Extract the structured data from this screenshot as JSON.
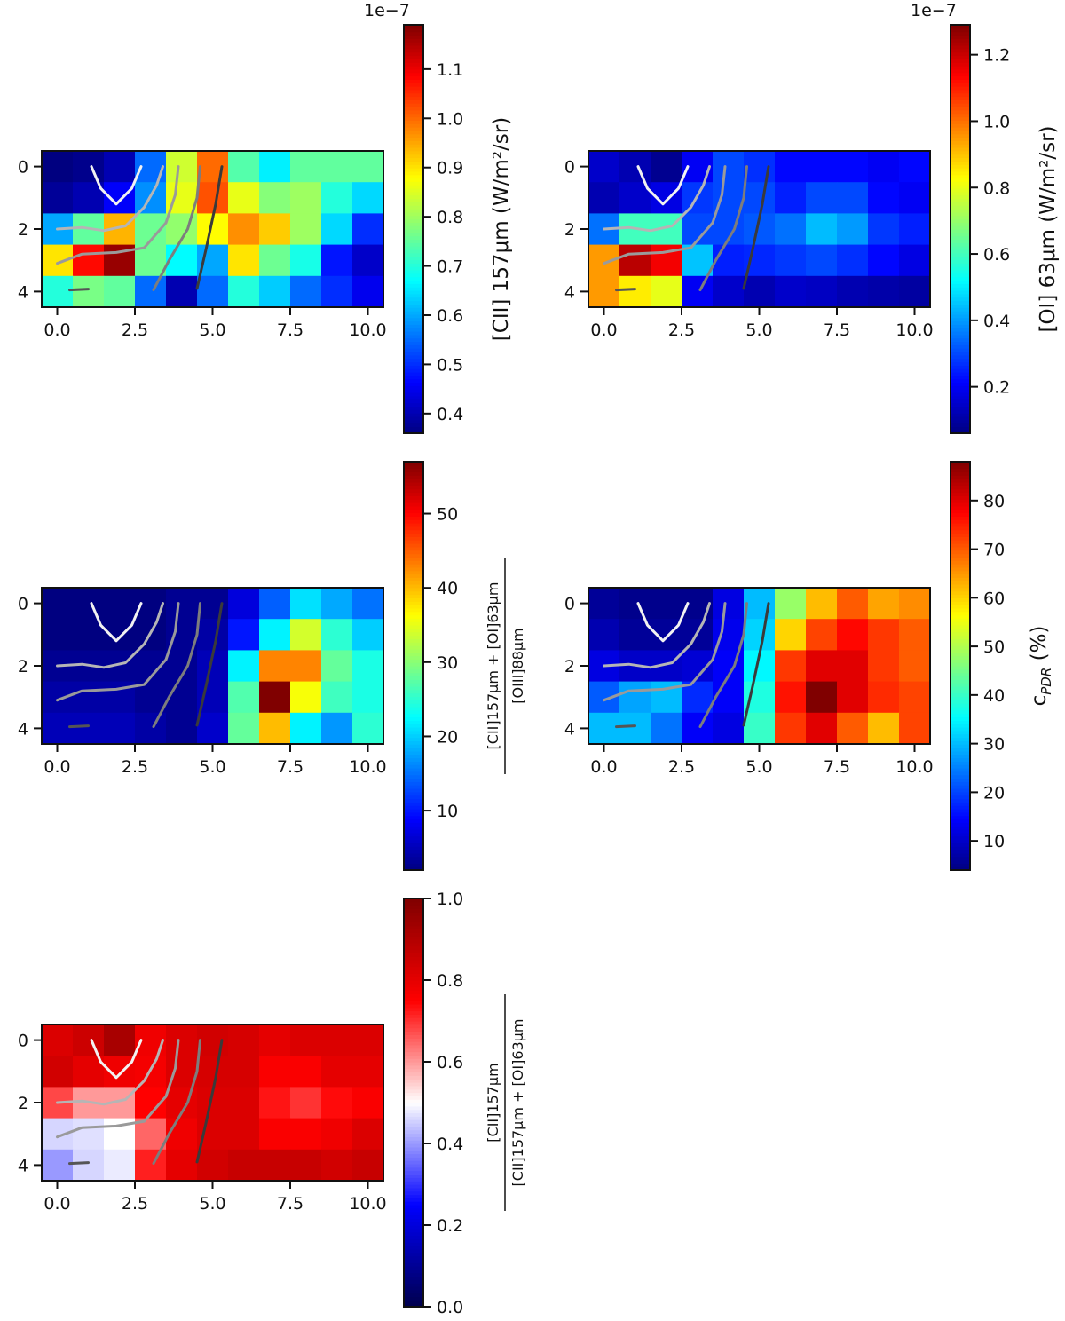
{
  "figure": {
    "panels": [
      {
        "id": "cii157",
        "cbar": {
          "label": "[CII] 157μm (W/m²/sr)",
          "label_type": "text",
          "offset_text": "1e−7",
          "colormap": "jet",
          "range": [
            0.36,
            1.19
          ],
          "ticks": [
            "0.4",
            "0.5",
            "0.6",
            "0.7",
            "0.8",
            "0.9",
            "1.0",
            "1.1"
          ]
        }
      },
      {
        "id": "oi63",
        "cbar": {
          "label": "[OI] 63μm (W/m²/sr)",
          "label_type": "text",
          "offset_text": "1e−7",
          "colormap": "jet",
          "range": [
            0.06,
            1.29
          ],
          "ticks": [
            "0.2",
            "0.4",
            "0.6",
            "0.8",
            "1.0",
            "1.2"
          ]
        }
      },
      {
        "id": "ratio_oiii",
        "cbar": {
          "label_type": "fraction",
          "numerator": "[CII]157μm + [OI]63μm",
          "denominator": "[OIII]88μm",
          "colormap": "jet",
          "range": [
            2,
            57
          ],
          "ticks": [
            "10",
            "20",
            "30",
            "40",
            "50"
          ]
        }
      },
      {
        "id": "cpdr",
        "cbar": {
          "label": "c",
          "label_sub": "PDR",
          "label_tail": " (%)",
          "label_type": "sub",
          "colormap": "jet",
          "range": [
            4,
            88
          ],
          "ticks": [
            "10",
            "20",
            "30",
            "40",
            "50",
            "60",
            "70",
            "80"
          ]
        }
      },
      {
        "id": "cii_fraction",
        "cbar": {
          "label_type": "fraction",
          "numerator": "[CII]157μm",
          "denominator": "[CII]157μm + [OI]63μm",
          "colormap": "seismic",
          "range": [
            0,
            1
          ],
          "ticks": [
            "0.0",
            "0.2",
            "0.4",
            "0.6",
            "0.8",
            "1.0"
          ]
        }
      }
    ],
    "axes": {
      "x_ticks": [
        "0.0",
        "2.5",
        "5.0",
        "7.5",
        "10.0"
      ],
      "y_ticks": [
        "0",
        "2",
        "4"
      ]
    }
  },
  "chart_data": [
    {
      "type": "heatmap",
      "name": "[CII] 157μm",
      "xlim": [
        -0.5,
        10.5
      ],
      "ylim": [
        4.5,
        -0.5
      ],
      "values": [
        [
          0.36,
          0.37,
          0.4,
          0.55,
          0.84,
          1.0,
          0.74,
          0.66,
          0.75,
          0.75,
          0.75
        ],
        [
          0.38,
          0.4,
          0.46,
          0.58,
          0.86,
          1.02,
          0.86,
          0.78,
          0.8,
          0.7,
          0.64
        ],
        [
          0.6,
          0.75,
          0.94,
          0.76,
          0.79,
          0.88,
          0.97,
          0.92,
          0.8,
          0.64,
          0.5
        ],
        [
          0.9,
          1.08,
          1.17,
          0.76,
          0.67,
          0.6,
          0.9,
          0.76,
          0.69,
          0.48,
          0.42
        ],
        [
          0.7,
          0.77,
          0.75,
          0.55,
          0.4,
          0.55,
          0.7,
          0.63,
          0.55,
          0.5,
          0.45
        ]
      ]
    },
    {
      "type": "heatmap",
      "name": "[OI] 63μm",
      "xlim": [
        -0.5,
        10.5
      ],
      "ylim": [
        4.5,
        -0.5
      ],
      "values": [
        [
          0.15,
          0.12,
          0.08,
          0.2,
          0.3,
          0.27,
          0.22,
          0.22,
          0.22,
          0.2,
          0.22
        ],
        [
          0.12,
          0.15,
          0.18,
          0.28,
          0.3,
          0.3,
          0.25,
          0.3,
          0.3,
          0.22,
          0.2
        ],
        [
          0.35,
          0.6,
          0.6,
          0.3,
          0.3,
          0.32,
          0.35,
          0.44,
          0.4,
          0.28,
          0.25
        ],
        [
          0.95,
          1.22,
          1.15,
          0.45,
          0.25,
          0.26,
          0.28,
          0.3,
          0.27,
          0.22,
          0.18
        ],
        [
          0.95,
          0.85,
          0.8,
          0.2,
          0.15,
          0.12,
          0.15,
          0.14,
          0.12,
          0.11,
          0.1
        ]
      ]
    },
    {
      "type": "heatmap",
      "name": "ratio ([CII]157μm + [OI]63μm)/[OIII]88μm",
      "xlim": [
        -0.5,
        10.5
      ],
      "ylim": [
        4.5,
        -0.5
      ],
      "values": [
        [
          2,
          2,
          2,
          2,
          3,
          3,
          7,
          14,
          21,
          18,
          15
        ],
        [
          2,
          2,
          2,
          2,
          3,
          4,
          10,
          22,
          34,
          25,
          20
        ],
        [
          3,
          3,
          3,
          3,
          3,
          5,
          22,
          43,
          43,
          28,
          24
        ],
        [
          4,
          4,
          4,
          3,
          3,
          5,
          27,
          57,
          36,
          26,
          24
        ],
        [
          5,
          5,
          5,
          4,
          3,
          6,
          28,
          40,
          22,
          17,
          25
        ]
      ]
    },
    {
      "type": "heatmap",
      "name": "cPDR (%)",
      "xlim": [
        -0.5,
        10.5
      ],
      "ylim": [
        4.5,
        -0.5
      ],
      "values": [
        [
          6,
          5,
          5,
          5,
          12,
          30,
          48,
          62,
          70,
          64,
          66
        ],
        [
          8,
          6,
          6,
          6,
          13,
          32,
          60,
          72,
          77,
          73,
          70
        ],
        [
          12,
          10,
          10,
          11,
          14,
          35,
          73,
          80,
          80,
          73,
          70
        ],
        [
          22,
          28,
          30,
          18,
          14,
          38,
          76,
          88,
          80,
          74,
          72
        ],
        [
          30,
          30,
          24,
          14,
          12,
          40,
          73,
          80,
          70,
          62,
          72
        ]
      ]
    },
    {
      "type": "heatmap",
      "name": "[CII]157μm / ([CII]157μm + [OI]63μm)",
      "xlim": [
        -0.5,
        10.5
      ],
      "ylim": [
        4.5,
        -0.5
      ],
      "values": [
        [
          0.82,
          0.85,
          0.92,
          0.78,
          0.82,
          0.84,
          0.83,
          0.8,
          0.82,
          0.82,
          0.82
        ],
        [
          0.84,
          0.8,
          0.78,
          0.77,
          0.82,
          0.83,
          0.83,
          0.76,
          0.76,
          0.8,
          0.8
        ],
        [
          0.68,
          0.6,
          0.6,
          0.75,
          0.8,
          0.82,
          0.82,
          0.73,
          0.7,
          0.74,
          0.76
        ],
        [
          0.46,
          0.47,
          0.5,
          0.65,
          0.78,
          0.82,
          0.82,
          0.76,
          0.76,
          0.78,
          0.82
        ],
        [
          0.4,
          0.46,
          0.48,
          0.72,
          0.8,
          0.84,
          0.86,
          0.86,
          0.86,
          0.84,
          0.86
        ]
      ]
    }
  ]
}
